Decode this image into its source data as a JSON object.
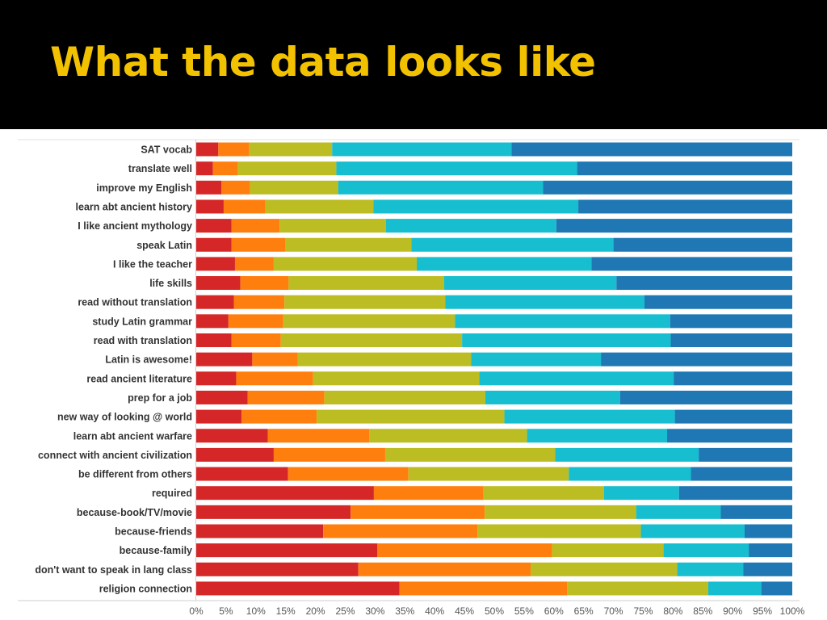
{
  "slide": {
    "title": "What the data looks like"
  },
  "chart_data": {
    "type": "bar",
    "orientation": "horizontal",
    "stacked": true,
    "normalized_to_percent": true,
    "categories": [
      "SAT vocab",
      "translate well",
      "improve my English",
      "learn abt ancient history",
      "I like ancient mythology",
      "speak Latin",
      "I like the teacher",
      "life skills",
      "read without translation",
      "study Latin grammar",
      "read with translation",
      "Latin is awesome!",
      "read ancient literature",
      "prep for a job",
      "new way of looking @ world",
      "learn abt ancient warfare",
      "connect with ancient civilization",
      "be different from others",
      "required",
      "because-book/TV/movie",
      "because-friends",
      "because-family",
      "don't want to speak in lang class",
      "religion connection"
    ],
    "series": [
      {
        "color": "#d62728",
        "values": [
          3.7,
          2.8,
          4.2,
          4.6,
          5.9,
          5.9,
          6.5,
          7.4,
          6.3,
          5.4,
          5.9,
          9.4,
          6.7,
          8.6,
          7.6,
          12.0,
          13.0,
          15.4,
          29.8,
          25.9,
          21.3,
          30.4,
          27.2,
          34.1
        ]
      },
      {
        "color": "#ff7f0e",
        "values": [
          5.2,
          4.2,
          4.8,
          7.0,
          8.1,
          9.1,
          6.5,
          8.1,
          8.5,
          9.2,
          8.3,
          7.6,
          12.9,
          12.9,
          12.6,
          17.0,
          18.7,
          20.2,
          18.4,
          22.5,
          25.9,
          29.3,
          28.9,
          28.1
        ]
      },
      {
        "color": "#bcbd22",
        "values": [
          13.9,
          16.5,
          14.8,
          18.1,
          17.8,
          21.1,
          24.0,
          26.1,
          27.0,
          28.8,
          30.4,
          29.1,
          27.9,
          27.0,
          31.5,
          26.5,
          28.5,
          26.9,
          20.2,
          25.4,
          27.4,
          18.7,
          24.6,
          23.7
        ]
      },
      {
        "color": "#17becf",
        "values": [
          30.1,
          40.4,
          34.4,
          34.4,
          28.6,
          33.9,
          29.3,
          28.9,
          33.4,
          36.1,
          35.0,
          21.8,
          32.6,
          22.6,
          28.6,
          23.5,
          24.1,
          20.5,
          12.6,
          14.2,
          17.4,
          14.3,
          11.1,
          8.9
        ]
      },
      {
        "color": "#1f77b4",
        "values": [
          47.1,
          36.1,
          41.8,
          35.9,
          39.6,
          30.0,
          33.7,
          29.5,
          24.8,
          20.5,
          20.4,
          32.1,
          19.9,
          28.9,
          19.7,
          21.0,
          15.7,
          17.0,
          19.0,
          12.0,
          8.0,
          7.3,
          8.2,
          5.2
        ]
      }
    ],
    "x_tick_labels": [
      "0%",
      "5%",
      "10%",
      "15%",
      "20%",
      "25%",
      "30%",
      "35%",
      "40%",
      "45%",
      "50%",
      "55%",
      "60%",
      "65%",
      "70%",
      "75%",
      "80%",
      "85%",
      "90%",
      "95%",
      "100%"
    ],
    "xlim": [
      0,
      100
    ],
    "grid": false,
    "legend": "none"
  }
}
